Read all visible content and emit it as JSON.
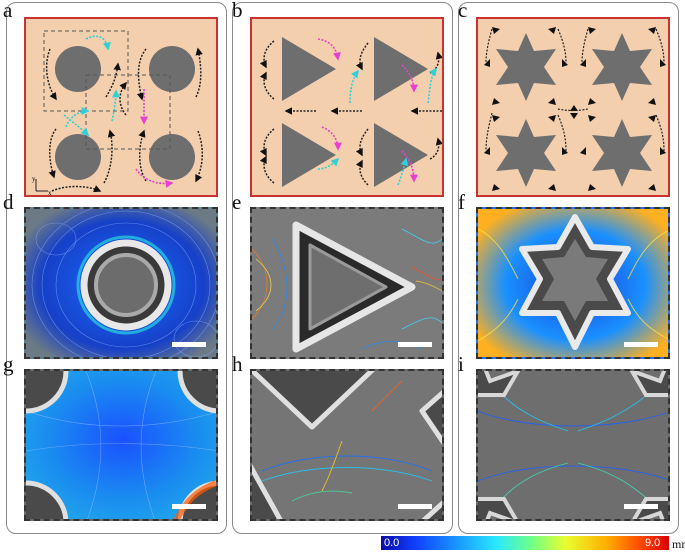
{
  "panels": {
    "a": "a",
    "b": "b",
    "c": "c",
    "d": "d",
    "e": "e",
    "f": "f",
    "g": "g",
    "h": "h",
    "i": "i"
  },
  "axes": {
    "y": "y",
    "x": "x"
  },
  "colorbar": {
    "min": "0.0",
    "max": "9.0",
    "unit": "mm/s"
  },
  "colors": {
    "frame": "#c9332f",
    "background": "#f4cfae",
    "obstacle": "#6e6e6e",
    "cyan": "#2fd0d8",
    "magenta": "#e83fd2"
  }
}
